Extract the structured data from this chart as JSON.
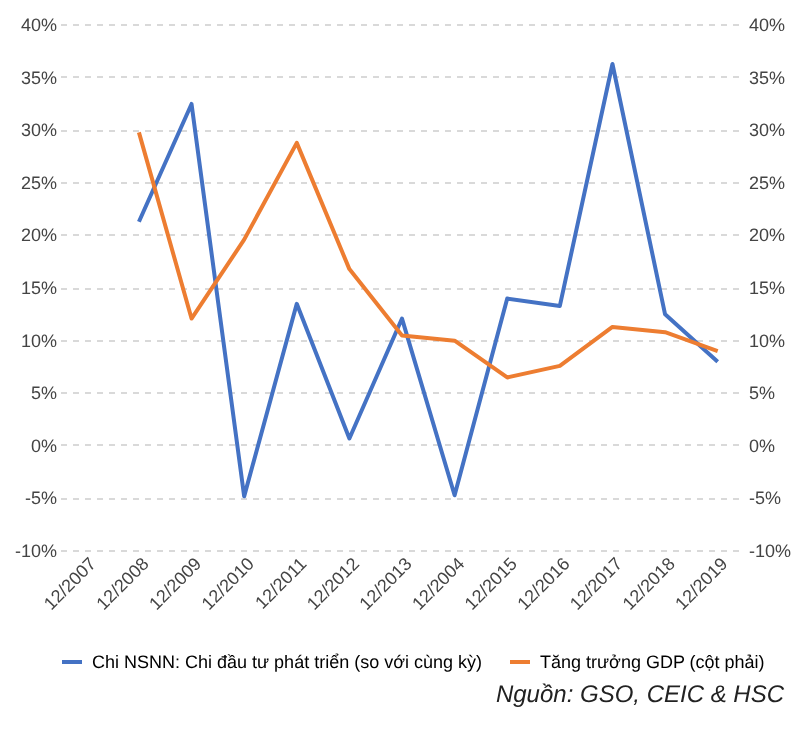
{
  "chart_data": {
    "type": "line",
    "categories": [
      "12/2007",
      "12/2008",
      "12/2009",
      "12/2010",
      "12/2011",
      "12/2012",
      "12/2013",
      "12/2004",
      "12/2015",
      "12/2016",
      "12/2017",
      "12/2018",
      "12/2019"
    ],
    "series": [
      {
        "name": "Chi NSNN: Chi đầu tư phát triển (so với cùng kỳ)",
        "color": "#4472c4",
        "values": [
          null,
          21.2,
          32.4,
          -4.9,
          13.4,
          0.6,
          12.0,
          -4.8,
          13.9,
          13.2,
          36.2,
          12.4,
          7.9
        ]
      },
      {
        "name": "Tăng trưởng GDP (cột phải)",
        "color": "#ed7d31",
        "axis": "y2",
        "values": [
          null,
          29.7,
          12.0,
          19.5,
          28.7,
          16.7,
          10.4,
          9.9,
          6.4,
          7.5,
          11.2,
          10.7,
          8.9
        ]
      }
    ],
    "ylim": [
      -10,
      40
    ],
    "yticks": [
      {
        "value": -10,
        "label": "-10%"
      },
      {
        "value": -5,
        "label": "-5%"
      },
      {
        "value": 0,
        "label": "0%"
      },
      {
        "value": 5,
        "label": "5%"
      },
      {
        "value": 10,
        "label": "10%"
      },
      {
        "value": 15,
        "label": "15%"
      },
      {
        "value": 20,
        "label": "20%"
      },
      {
        "value": 25,
        "label": "25%"
      },
      {
        "value": 30,
        "label": "30%"
      },
      {
        "value": 35,
        "label": "35%"
      },
      {
        "value": 40,
        "label": "40%"
      }
    ],
    "y2lim": [
      -10,
      40
    ],
    "y2ticks": [
      {
        "value": -10,
        "label": "-10%"
      },
      {
        "value": -5,
        "label": "-5%"
      },
      {
        "value": 0,
        "label": "0%"
      },
      {
        "value": 5,
        "label": "5%"
      },
      {
        "value": 10,
        "label": "10%"
      },
      {
        "value": 15,
        "label": "15%"
      },
      {
        "value": 20,
        "label": "20%"
      },
      {
        "value": 25,
        "label": "25%"
      },
      {
        "value": 30,
        "label": "30%"
      },
      {
        "value": 35,
        "label": "35%"
      },
      {
        "value": 40,
        "label": "40%"
      }
    ],
    "grid": "y",
    "legend": "bottom",
    "line_style": "solid",
    "annotations": [
      "Nguồn: GSO, CEIC & HSC"
    ]
  }
}
